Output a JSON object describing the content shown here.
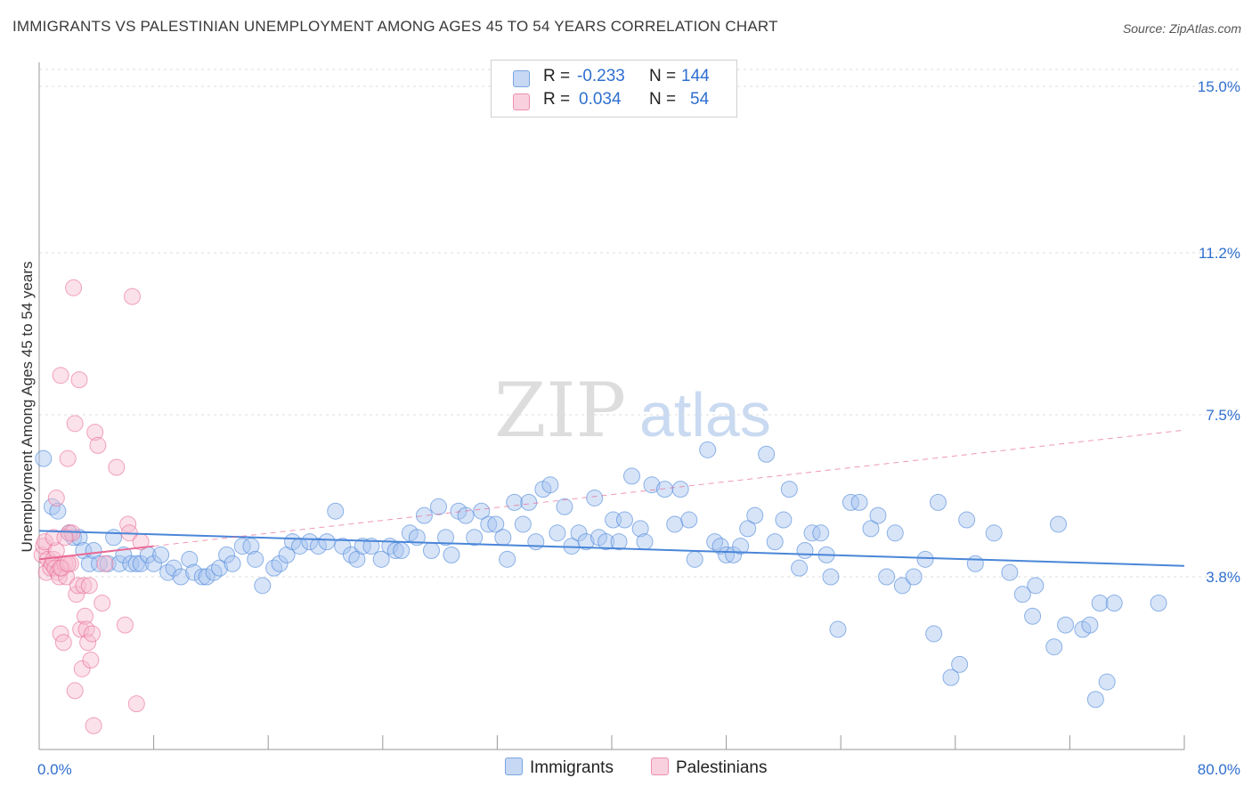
{
  "title": "IMMIGRANTS VS PALESTINIAN UNEMPLOYMENT AMONG AGES 45 TO 54 YEARS CORRELATION CHART",
  "source": "Source: ZipAtlas.com",
  "watermark": {
    "zip": "ZIP",
    "atlas": "atlas"
  },
  "legend_stats": [
    {
      "r_label": "R =",
      "r_value": "-0.233",
      "n_label": "N =",
      "n_value": "144",
      "color": "#a7c4ef"
    },
    {
      "r_label": "R =",
      "r_value": "0.034",
      "n_label": "N =",
      "n_value": "54",
      "color": "#f6bcd0"
    }
  ],
  "legend_series": [
    {
      "name": "Immigrants",
      "color": "#a7c4ef"
    },
    {
      "name": "Palestinians",
      "color": "#f6bcd0"
    }
  ],
  "chart_data": {
    "type": "scatter",
    "title": "IMMIGRANTS VS PALESTINIAN UNEMPLOYMENT AMONG AGES 45 TO 54 YEARS CORRELATION CHART",
    "xlabel": "",
    "ylabel": "Unemployment Among Ages 45 to 54 years",
    "xlim": [
      0,
      80
    ],
    "ylim": [
      0,
      15.8
    ],
    "x_tick_labels": [
      "0.0%",
      "80.0%"
    ],
    "y_ticks": [
      3.8,
      7.5,
      11.2,
      15.0
    ],
    "y_tick_labels": [
      "3.8%",
      "7.5%",
      "11.2%",
      "15.0%"
    ],
    "grid": true,
    "series": [
      {
        "name": "Immigrants",
        "color": "#4a86d8",
        "fill": "#a7c4ef",
        "points": [
          [
            0.3,
            6.5
          ],
          [
            0.9,
            5.4
          ],
          [
            1.3,
            5.3
          ],
          [
            2.1,
            4.8
          ],
          [
            2.4,
            4.7
          ],
          [
            2.8,
            4.7
          ],
          [
            3.1,
            4.4
          ],
          [
            3.5,
            4.1
          ],
          [
            3.8,
            4.4
          ],
          [
            4.2,
            4.1
          ],
          [
            4.8,
            4.1
          ],
          [
            5.2,
            4.7
          ],
          [
            5.6,
            4.1
          ],
          [
            5.9,
            4.3
          ],
          [
            6.4,
            4.1
          ],
          [
            6.8,
            4.1
          ],
          [
            7.1,
            4.1
          ],
          [
            7.6,
            4.3
          ],
          [
            8.0,
            4.1
          ],
          [
            8.5,
            4.3
          ],
          [
            9.0,
            3.9
          ],
          [
            9.4,
            4.0
          ],
          [
            9.9,
            3.8
          ],
          [
            10.5,
            4.2
          ],
          [
            10.8,
            3.9
          ],
          [
            11.4,
            3.8
          ],
          [
            11.7,
            3.8
          ],
          [
            12.2,
            3.9
          ],
          [
            12.6,
            4.0
          ],
          [
            13.1,
            4.3
          ],
          [
            13.5,
            4.1
          ],
          [
            14.2,
            4.5
          ],
          [
            14.8,
            4.5
          ],
          [
            15.1,
            4.2
          ],
          [
            15.6,
            3.6
          ],
          [
            16.4,
            4.0
          ],
          [
            16.8,
            4.1
          ],
          [
            17.3,
            4.3
          ],
          [
            17.7,
            4.6
          ],
          [
            18.2,
            4.5
          ],
          [
            18.9,
            4.6
          ],
          [
            19.5,
            4.5
          ],
          [
            20.1,
            4.6
          ],
          [
            20.7,
            5.3
          ],
          [
            21.2,
            4.5
          ],
          [
            21.8,
            4.3
          ],
          [
            22.2,
            4.2
          ],
          [
            22.6,
            4.5
          ],
          [
            23.2,
            4.5
          ],
          [
            23.9,
            4.2
          ],
          [
            24.5,
            4.5
          ],
          [
            24.9,
            4.4
          ],
          [
            25.3,
            4.4
          ],
          [
            25.9,
            4.8
          ],
          [
            26.4,
            4.7
          ],
          [
            26.9,
            5.2
          ],
          [
            27.4,
            4.4
          ],
          [
            27.9,
            5.4
          ],
          [
            28.4,
            4.7
          ],
          [
            28.8,
            4.3
          ],
          [
            29.3,
            5.3
          ],
          [
            29.8,
            5.2
          ],
          [
            30.4,
            4.7
          ],
          [
            30.9,
            5.3
          ],
          [
            31.4,
            5.0
          ],
          [
            31.9,
            5.0
          ],
          [
            32.4,
            4.7
          ],
          [
            32.7,
            4.2
          ],
          [
            33.2,
            5.5
          ],
          [
            33.8,
            5.0
          ],
          [
            34.2,
            5.5
          ],
          [
            34.7,
            4.6
          ],
          [
            35.2,
            5.8
          ],
          [
            35.7,
            5.9
          ],
          [
            36.2,
            4.8
          ],
          [
            36.7,
            5.4
          ],
          [
            37.2,
            4.5
          ],
          [
            37.7,
            4.8
          ],
          [
            38.2,
            4.6
          ],
          [
            38.8,
            5.6
          ],
          [
            39.1,
            4.7
          ],
          [
            39.6,
            4.6
          ],
          [
            40.1,
            5.1
          ],
          [
            40.5,
            4.6
          ],
          [
            40.9,
            5.1
          ],
          [
            41.4,
            6.1
          ],
          [
            42.0,
            4.9
          ],
          [
            42.3,
            4.6
          ],
          [
            42.8,
            5.9
          ],
          [
            43.7,
            5.8
          ],
          [
            44.4,
            5.0
          ],
          [
            44.8,
            5.8
          ],
          [
            45.4,
            5.1
          ],
          [
            45.8,
            4.2
          ],
          [
            46.7,
            6.7
          ],
          [
            47.2,
            4.6
          ],
          [
            47.6,
            4.5
          ],
          [
            48.0,
            4.3
          ],
          [
            48.5,
            4.3
          ],
          [
            49.0,
            4.5
          ],
          [
            49.5,
            4.9
          ],
          [
            50.0,
            5.2
          ],
          [
            50.8,
            6.6
          ],
          [
            51.4,
            4.6
          ],
          [
            52.0,
            5.1
          ],
          [
            52.4,
            5.8
          ],
          [
            53.1,
            4.0
          ],
          [
            53.5,
            4.4
          ],
          [
            54.0,
            4.8
          ],
          [
            54.6,
            4.8
          ],
          [
            55.0,
            4.3
          ],
          [
            55.3,
            3.8
          ],
          [
            55.8,
            2.6
          ],
          [
            56.7,
            5.5
          ],
          [
            57.3,
            5.5
          ],
          [
            58.1,
            4.9
          ],
          [
            58.6,
            5.2
          ],
          [
            59.2,
            3.8
          ],
          [
            59.8,
            4.8
          ],
          [
            60.3,
            3.6
          ],
          [
            61.1,
            3.8
          ],
          [
            61.9,
            4.2
          ],
          [
            62.5,
            2.5
          ],
          [
            62.8,
            5.5
          ],
          [
            63.7,
            1.5
          ],
          [
            64.3,
            1.8
          ],
          [
            64.8,
            5.1
          ],
          [
            65.4,
            4.1
          ],
          [
            66.7,
            4.8
          ],
          [
            67.8,
            3.9
          ],
          [
            68.7,
            3.4
          ],
          [
            69.4,
            2.9
          ],
          [
            69.6,
            3.6
          ],
          [
            70.9,
            2.2
          ],
          [
            71.2,
            5.0
          ],
          [
            71.7,
            2.7
          ],
          [
            72.9,
            2.6
          ],
          [
            73.4,
            2.7
          ],
          [
            73.8,
            1.0
          ],
          [
            74.1,
            3.2
          ],
          [
            74.6,
            1.4
          ],
          [
            75.1,
            3.2
          ],
          [
            78.2,
            3.2
          ]
        ]
      },
      {
        "name": "Palestinians",
        "color": "#e86b96",
        "fill": "#f6bcd0",
        "points": [
          [
            0.2,
            4.3
          ],
          [
            0.3,
            4.5
          ],
          [
            0.4,
            4.6
          ],
          [
            0.5,
            3.9
          ],
          [
            0.6,
            4.2
          ],
          [
            0.8,
            4.0
          ],
          [
            0.9,
            4.1
          ],
          [
            1.0,
            4.2
          ],
          [
            1.1,
            4.0
          ],
          [
            1.2,
            5.6
          ],
          [
            1.2,
            4.4
          ],
          [
            1.3,
            3.9
          ],
          [
            1.4,
            3.8
          ],
          [
            1.5,
            2.5
          ],
          [
            1.5,
            8.4
          ],
          [
            1.6,
            4.0
          ],
          [
            1.7,
            2.3
          ],
          [
            1.8,
            4.1
          ],
          [
            1.9,
            3.8
          ],
          [
            2.0,
            6.5
          ],
          [
            2.1,
            4.8
          ],
          [
            2.2,
            4.1
          ],
          [
            2.3,
            4.8
          ],
          [
            2.4,
            10.4
          ],
          [
            2.5,
            7.3
          ],
          [
            2.5,
            1.2
          ],
          [
            2.6,
            3.4
          ],
          [
            2.7,
            3.6
          ],
          [
            2.8,
            8.3
          ],
          [
            2.9,
            2.6
          ],
          [
            3.0,
            1.7
          ],
          [
            3.1,
            3.6
          ],
          [
            3.2,
            2.9
          ],
          [
            3.3,
            2.6
          ],
          [
            3.4,
            2.3
          ],
          [
            3.5,
            3.6
          ],
          [
            3.6,
            1.9
          ],
          [
            3.7,
            2.5
          ],
          [
            3.8,
            0.4
          ],
          [
            3.9,
            7.1
          ],
          [
            4.1,
            6.8
          ],
          [
            4.4,
            3.2
          ],
          [
            4.6,
            4.1
          ],
          [
            5.4,
            6.3
          ],
          [
            6.0,
            2.7
          ],
          [
            6.2,
            5.0
          ],
          [
            6.3,
            4.8
          ],
          [
            6.5,
            10.2
          ],
          [
            6.8,
            0.9
          ],
          [
            7.1,
            4.6
          ],
          [
            1.0,
            4.7
          ],
          [
            1.5,
            4.0
          ],
          [
            2.0,
            4.1
          ],
          [
            1.8,
            4.7
          ]
        ]
      }
    ],
    "trend_lines": [
      {
        "series": "Immigrants",
        "from": [
          0,
          4.85
        ],
        "to": [
          80,
          4.05
        ],
        "style": "solid"
      },
      {
        "series": "Palestinians",
        "from": [
          0,
          4.2
        ],
        "to": [
          8,
          4.5
        ],
        "style": "solid"
      },
      {
        "series": "Palestinians",
        "from": [
          8,
          4.5
        ],
        "to": [
          80,
          7.15
        ],
        "style": "dashed"
      }
    ]
  }
}
